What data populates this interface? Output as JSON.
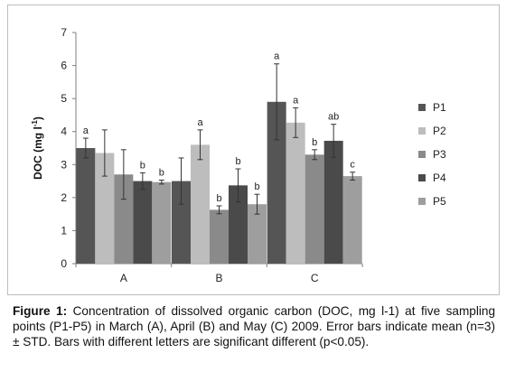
{
  "chart_data": {
    "type": "bar",
    "categories": [
      "A",
      "B",
      "C"
    ],
    "ylabel": "DOC (mg l-1)",
    "ylabel_main": "DOC (mg l",
    "ylabel_sup": "-1",
    "ylabel_close": ")",
    "ylim": [
      0,
      7
    ],
    "yticks": [
      "0",
      "1",
      "2",
      "3",
      "4",
      "5",
      "6",
      "7"
    ],
    "legend_position": "right",
    "error_bars": true,
    "series": [
      {
        "name": "P1",
        "color": "#555555",
        "values": [
          3.5,
          2.5,
          4.9
        ],
        "errors": [
          0.3,
          0.7,
          1.15
        ],
        "letters": [
          "a",
          "",
          "a"
        ]
      },
      {
        "name": "P2",
        "color": "#bdbdbd",
        "values": [
          3.35,
          3.6,
          4.27
        ],
        "errors": [
          0.7,
          0.45,
          0.45
        ],
        "letters": [
          "",
          "a",
          "a"
        ]
      },
      {
        "name": "P3",
        "color": "#8a8a8a",
        "values": [
          2.7,
          1.63,
          3.3
        ],
        "errors": [
          0.75,
          0.12,
          0.15
        ],
        "letters": [
          "",
          "b",
          "b"
        ]
      },
      {
        "name": "P4",
        "color": "#4a4a4a",
        "values": [
          2.5,
          2.37,
          3.72
        ],
        "errors": [
          0.25,
          0.5,
          0.5
        ],
        "letters": [
          "b",
          "b",
          "ab"
        ]
      },
      {
        "name": "P5",
        "color": "#9e9e9e",
        "values": [
          2.47,
          1.8,
          2.65
        ],
        "errors": [
          0.06,
          0.3,
          0.12
        ],
        "letters": [
          "b",
          "b",
          "c"
        ]
      }
    ]
  },
  "caption": {
    "label": "Figure 1:",
    "text": " Concentration of dissolved organic carbon (DOC, mg l-1) at five sampling points (P1-P5) in March (A), April (B) and May (C) 2009. Error bars indicate mean (n=3) ± STD. Bars with different letters are significant different (p<0.05)."
  }
}
